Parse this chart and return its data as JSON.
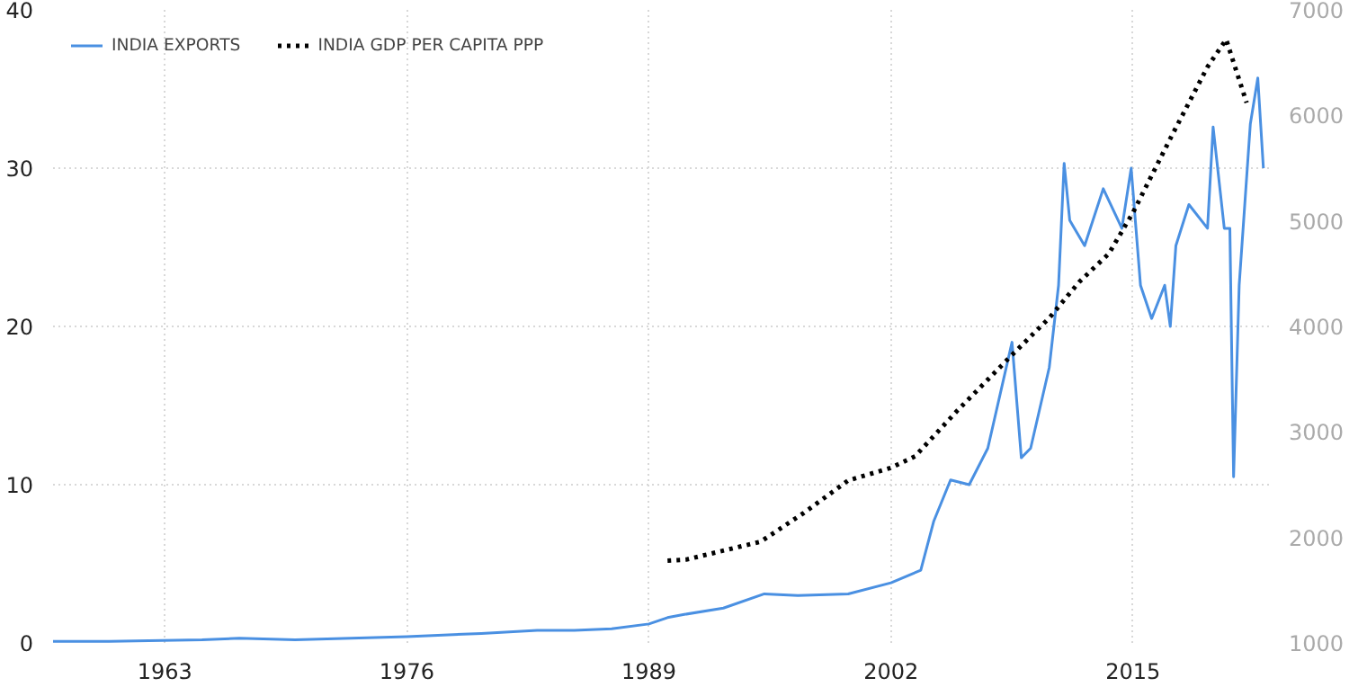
{
  "chart_data": {
    "type": "line",
    "xlim": [
      1957,
      2022.3
    ],
    "xticks": [
      1963,
      1976,
      1989,
      2002,
      2015
    ],
    "ylim": [
      0,
      40
    ],
    "yticks": [
      0,
      10,
      20,
      30,
      40
    ],
    "y2lim": [
      1000,
      7000
    ],
    "y2ticks": [
      1000,
      2000,
      3000,
      4000,
      5000,
      6000,
      7000
    ],
    "grid": true,
    "legend": "top left",
    "series": [
      {
        "name": "INDIA EXPORTS",
        "color": "#4a90e2",
        "line_style": "solid",
        "x": [
          1957,
          1960,
          1965,
          1967,
          1970,
          1973,
          1976,
          1980,
          1983,
          1985,
          1987,
          1989,
          1990,
          1990.9,
          1993,
          1995.2,
          1997,
          1999.7,
          2002,
          2003.6,
          2004.3,
          2005.2,
          2006.2,
          2007.2,
          2008.5,
          2009,
          2009.5,
          2010.5,
          2011,
          2011.3,
          2011.6,
          2012.4,
          2013.4,
          2014.4,
          2014.9,
          2015.4,
          2016,
          2016.7,
          2017,
          2017.3,
          2018,
          2019,
          2019.3,
          2019.9,
          2020.2,
          2020.4,
          2020.7,
          2021,
          2021.3,
          2021.7,
          2022
        ],
        "values": [
          0.1,
          0.1,
          0.2,
          0.3,
          0.2,
          0.3,
          0.4,
          0.6,
          0.8,
          0.8,
          0.9,
          1.2,
          1.6,
          1.8,
          2.2,
          3.1,
          3.0,
          3.1,
          3.8,
          4.6,
          7.7,
          10.3,
          10.0,
          12.3,
          19.0,
          11.7,
          12.3,
          17.4,
          22.6,
          30.3,
          26.7,
          25.1,
          28.7,
          26.2,
          30.0,
          22.6,
          20.5,
          22.6,
          20.0,
          25.1,
          27.7,
          26.2,
          32.6,
          26.2,
          26.2,
          10.5,
          22.6,
          27.7,
          32.8,
          35.7,
          30.0
        ]
      },
      {
        "name": "INDIA GDP PER CAPITA PPP",
        "color": "#000000",
        "line_style": "dotted",
        "axis": "y2",
        "x": [
          1990,
          1991,
          1995,
          1997.3,
          1999.7,
          2002,
          2003.3,
          2005.5,
          2008.5,
          2010.5,
          2012.1,
          2013.7,
          2015,
          2017,
          2019,
          2020,
          2021.1
        ],
        "values": [
          1780,
          1790,
          1960,
          2230,
          2540,
          2660,
          2770,
          3190,
          3730,
          4080,
          4420,
          4690,
          5080,
          5780,
          6460,
          6720,
          6120
        ]
      }
    ]
  }
}
